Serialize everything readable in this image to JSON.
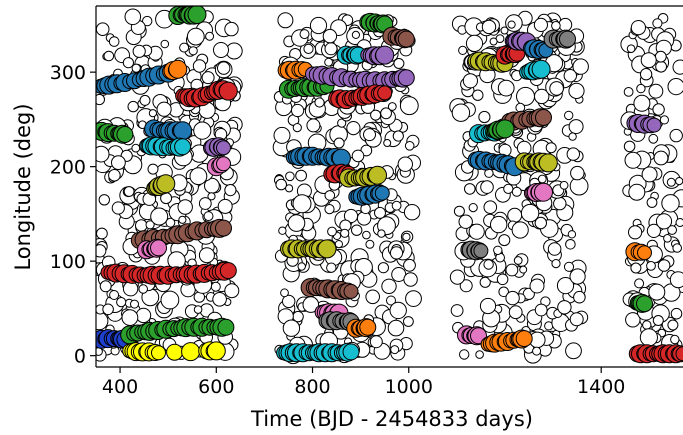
{
  "chart_data": {
    "type": "scatter",
    "title": "",
    "xlabel": "Time (BJD - 2454833 days)",
    "ylabel": "Longitude (deg)",
    "xlim": [
      350,
      1570
    ],
    "ylim": [
      -12,
      370
    ],
    "xticks": [
      400,
      600,
      800,
      1000,
      1400
    ],
    "xtick_labels": [
      "400",
      "600",
      "800",
      "1000",
      "1400"
    ],
    "yticks": [
      0,
      100,
      200,
      300
    ],
    "ytick_labels": [
      "0",
      "100",
      "200",
      "300"
    ],
    "grid": false,
    "legend": "none",
    "colors": {
      "background_points_edge": "#000000",
      "background_points_fill": "#ffffff",
      "track_edge": "#000000"
    },
    "background": {
      "marker": "open-circle",
      "clusters": [
        {
          "x": [
            355,
            640
          ],
          "y": [
            0,
            360
          ]
        },
        {
          "x": [
            730,
            1010
          ],
          "y": [
            0,
            360
          ]
        },
        {
          "x": [
            1100,
            1360
          ],
          "y": [
            0,
            360
          ]
        },
        {
          "x": [
            1455,
            1570
          ],
          "y": [
            0,
            360
          ]
        }
      ]
    },
    "series": [
      {
        "color": "#1f77b4",
        "points": [
          [
            360,
            285
          ],
          [
            385,
            287
          ],
          [
            410,
            289
          ],
          [
            440,
            292
          ],
          [
            470,
            296
          ],
          [
            500,
            299
          ]
        ]
      },
      {
        "color": "#ff7f0e",
        "points": [
          [
            505,
            301
          ],
          [
            520,
            303
          ]
        ]
      },
      {
        "color": "#2ca02c",
        "points": [
          [
            520,
            360
          ],
          [
            535,
            361
          ],
          [
            550,
            360
          ],
          [
            560,
            361
          ]
        ]
      },
      {
        "color": "#d62728",
        "points": [
          [
            530,
            275
          ],
          [
            550,
            272
          ],
          [
            570,
            274
          ],
          [
            590,
            278
          ],
          [
            610,
            282
          ],
          [
            625,
            280
          ]
        ]
      },
      {
        "color": "#2ca02c",
        "points": [
          [
            355,
            238
          ],
          [
            375,
            236
          ],
          [
            395,
            235
          ],
          [
            410,
            234
          ]
        ]
      },
      {
        "color": "#1f77b4",
        "points": [
          [
            470,
            240
          ],
          [
            490,
            238
          ],
          [
            510,
            238
          ],
          [
            530,
            238
          ]
        ]
      },
      {
        "color": "#17becf",
        "points": [
          [
            455,
            222
          ],
          [
            470,
            222
          ],
          [
            490,
            221
          ],
          [
            510,
            220
          ],
          [
            530,
            221
          ]
        ]
      },
      {
        "color": "#9467bd",
        "points": [
          [
            590,
            220
          ],
          [
            605,
            221
          ],
          [
            615,
            220
          ]
        ]
      },
      {
        "color": "#e377c2",
        "points": [
          [
            600,
            200
          ],
          [
            615,
            203
          ]
        ]
      },
      {
        "color": "#bcbd22",
        "points": [
          [
            470,
            177
          ],
          [
            485,
            180
          ],
          [
            495,
            182
          ]
        ]
      },
      {
        "color": "#8c564b",
        "points": [
          [
            440,
            122
          ],
          [
            470,
            124
          ],
          [
            500,
            126
          ],
          [
            530,
            129
          ],
          [
            560,
            132
          ],
          [
            590,
            134
          ],
          [
            615,
            135
          ]
        ]
      },
      {
        "color": "#e377c2",
        "points": [
          [
            455,
            112
          ],
          [
            470,
            113
          ],
          [
            480,
            114
          ]
        ]
      },
      {
        "color": "#d62728",
        "points": [
          [
            375,
            88
          ],
          [
            400,
            87
          ],
          [
            425,
            86
          ],
          [
            450,
            85
          ],
          [
            475,
            85
          ],
          [
            500,
            85
          ],
          [
            525,
            86
          ],
          [
            550,
            86
          ],
          [
            575,
            87
          ],
          [
            600,
            88
          ],
          [
            625,
            90
          ]
        ]
      },
      {
        "color": "#1f3fcf",
        "points": [
          [
            355,
            17
          ],
          [
            375,
            18
          ],
          [
            395,
            18
          ],
          [
            410,
            17
          ]
        ]
      },
      {
        "color": "#2ca02c",
        "points": [
          [
            420,
            22
          ],
          [
            445,
            25
          ],
          [
            470,
            26
          ],
          [
            495,
            28
          ],
          [
            520,
            29
          ],
          [
            545,
            30
          ],
          [
            570,
            30
          ],
          [
            595,
            30
          ],
          [
            620,
            30
          ]
        ]
      },
      {
        "color": "#ffff00",
        "points": [
          [
            420,
            5
          ],
          [
            440,
            4
          ],
          [
            460,
            4
          ],
          [
            480,
            3
          ],
          [
            580,
            5
          ],
          [
            600,
            5
          ]
        ]
      },
      {
        "color": "#ff7f0e",
        "points": [
          [
            745,
            302
          ],
          [
            765,
            302
          ],
          [
            785,
            303
          ]
        ]
      },
      {
        "color": "#2ca02c",
        "points": [
          [
            750,
            282
          ],
          [
            770,
            283
          ],
          [
            790,
            284
          ],
          [
            810,
            284
          ],
          [
            830,
            285
          ]
        ]
      },
      {
        "color": "#9467bd",
        "points": [
          [
            800,
            298
          ],
          [
            830,
            296
          ],
          [
            860,
            294
          ],
          [
            890,
            292
          ],
          [
            920,
            291
          ],
          [
            950,
            291
          ],
          [
            975,
            293
          ],
          [
            995,
            294
          ]
        ]
      },
      {
        "color": "#d62728",
        "points": [
          [
            850,
            272
          ],
          [
            870,
            271
          ],
          [
            890,
            273
          ],
          [
            910,
            275
          ],
          [
            930,
            277
          ],
          [
            950,
            278
          ]
        ]
      },
      {
        "color": "#17becf",
        "points": [
          [
            870,
            318
          ],
          [
            885,
            318
          ],
          [
            895,
            318
          ]
        ]
      },
      {
        "color": "#9467bd",
        "points": [
          [
            915,
            318
          ],
          [
            935,
            317
          ],
          [
            950,
            318
          ]
        ]
      },
      {
        "color": "#2ca02c",
        "points": [
          [
            915,
            353
          ],
          [
            930,
            352
          ],
          [
            940,
            351
          ],
          [
            950,
            351
          ]
        ]
      },
      {
        "color": "#8c564b",
        "points": [
          [
            965,
            338
          ],
          [
            985,
            336
          ],
          [
            995,
            335
          ]
        ]
      },
      {
        "color": "#1f77b4",
        "points": [
          [
            760,
            210
          ],
          [
            780,
            211
          ],
          [
            800,
            211
          ],
          [
            820,
            210
          ],
          [
            840,
            210
          ],
          [
            860,
            209
          ]
        ]
      },
      {
        "color": "#d62728",
        "points": [
          [
            840,
            192
          ],
          [
            860,
            193
          ],
          [
            875,
            193
          ]
        ]
      },
      {
        "color": "#bcbd22",
        "points": [
          [
            875,
            188
          ],
          [
            895,
            188
          ],
          [
            915,
            189
          ],
          [
            935,
            191
          ]
        ]
      },
      {
        "color": "#1f77b4",
        "points": [
          [
            890,
            168
          ],
          [
            910,
            169
          ],
          [
            930,
            171
          ],
          [
            945,
            172
          ]
        ]
      },
      {
        "color": "#bcbd22",
        "points": [
          [
            750,
            113
          ],
          [
            770,
            113
          ],
          [
            790,
            113
          ],
          [
            810,
            113
          ],
          [
            830,
            113
          ]
        ]
      },
      {
        "color": "#8c564b",
        "points": [
          [
            795,
            72
          ],
          [
            815,
            72
          ],
          [
            840,
            70
          ],
          [
            860,
            69
          ],
          [
            880,
            68
          ]
        ]
      },
      {
        "color": "#e377c2",
        "points": [
          [
            820,
            46
          ],
          [
            840,
            45
          ],
          [
            855,
            45
          ]
        ]
      },
      {
        "color": "#7f7f7f",
        "points": [
          [
            830,
            37
          ],
          [
            850,
            37
          ],
          [
            870,
            36
          ],
          [
            880,
            36
          ]
        ]
      },
      {
        "color": "#ff7f0e",
        "points": [
          [
            890,
            29
          ],
          [
            905,
            29
          ],
          [
            915,
            30
          ]
        ]
      },
      {
        "color": "#17becf",
        "points": [
          [
            740,
            3
          ],
          [
            760,
            3
          ],
          [
            780,
            3
          ],
          [
            800,
            3
          ],
          [
            820,
            3
          ],
          [
            840,
            3
          ],
          [
            860,
            3
          ],
          [
            880,
            4
          ]
        ]
      },
      {
        "color": "#bcbd22",
        "points": [
          [
            1140,
            312
          ],
          [
            1160,
            311
          ],
          [
            1180,
            310
          ],
          [
            1200,
            309
          ]
        ]
      },
      {
        "color": "#d62728",
        "points": [
          [
            1200,
            318
          ],
          [
            1215,
            319
          ],
          [
            1225,
            320
          ]
        ]
      },
      {
        "color": "#9467bd",
        "points": [
          [
            1215,
            333
          ],
          [
            1230,
            333
          ],
          [
            1245,
            332
          ]
        ]
      },
      {
        "color": "#1f77b4",
        "points": [
          [
            1255,
            325
          ],
          [
            1270,
            324
          ],
          [
            1285,
            323
          ]
        ]
      },
      {
        "color": "#7f7f7f",
        "points": [
          [
            1300,
            335
          ],
          [
            1320,
            335
          ],
          [
            1330,
            335
          ]
        ]
      },
      {
        "color": "#17becf",
        "points": [
          [
            1245,
            300
          ],
          [
            1265,
            302
          ],
          [
            1275,
            303
          ]
        ]
      },
      {
        "color": "#8c564b",
        "points": [
          [
            1210,
            248
          ],
          [
            1235,
            249
          ],
          [
            1260,
            251
          ],
          [
            1280,
            252
          ]
        ]
      },
      {
        "color": "#17becf",
        "points": [
          [
            1145,
            235
          ],
          [
            1165,
            236
          ],
          [
            1185,
            237
          ]
        ]
      },
      {
        "color": "#2ca02c",
        "points": [
          [
            1175,
            238
          ],
          [
            1190,
            239
          ],
          [
            1200,
            240
          ]
        ]
      },
      {
        "color": "#1f77b4",
        "points": [
          [
            1140,
            207
          ],
          [
            1160,
            206
          ],
          [
            1180,
            205
          ],
          [
            1200,
            203
          ],
          [
            1220,
            200
          ]
        ]
      },
      {
        "color": "#bcbd22",
        "points": [
          [
            1240,
            205
          ],
          [
            1260,
            205
          ],
          [
            1275,
            205
          ],
          [
            1290,
            204
          ]
        ]
      },
      {
        "color": "#e377c2",
        "points": [
          [
            1255,
            172
          ],
          [
            1270,
            173
          ],
          [
            1280,
            173
          ]
        ]
      },
      {
        "color": "#7f7f7f",
        "points": [
          [
            1125,
            112
          ],
          [
            1140,
            111
          ],
          [
            1150,
            111
          ]
        ]
      },
      {
        "color": "#e377c2",
        "points": [
          [
            1120,
            22
          ],
          [
            1135,
            21
          ],
          [
            1145,
            21
          ]
        ]
      },
      {
        "color": "#ff7f0e",
        "points": [
          [
            1165,
            12
          ],
          [
            1185,
            14
          ],
          [
            1205,
            15
          ],
          [
            1225,
            17
          ],
          [
            1240,
            18
          ]
        ]
      },
      {
        "color": "#9467bd",
        "points": [
          [
            1470,
            246
          ],
          [
            1490,
            245
          ],
          [
            1510,
            244
          ]
        ]
      },
      {
        "color": "#ff7f0e",
        "points": [
          [
            1470,
            110
          ],
          [
            1490,
            109
          ]
        ]
      },
      {
        "color": "#2ca02c",
        "points": [
          [
            1475,
            56
          ],
          [
            1490,
            55
          ]
        ]
      },
      {
        "color": "#d62728",
        "points": [
          [
            1475,
            2
          ],
          [
            1495,
            2
          ],
          [
            1515,
            2
          ],
          [
            1535,
            2
          ],
          [
            1555,
            2
          ],
          [
            1570,
            2
          ]
        ]
      }
    ]
  }
}
